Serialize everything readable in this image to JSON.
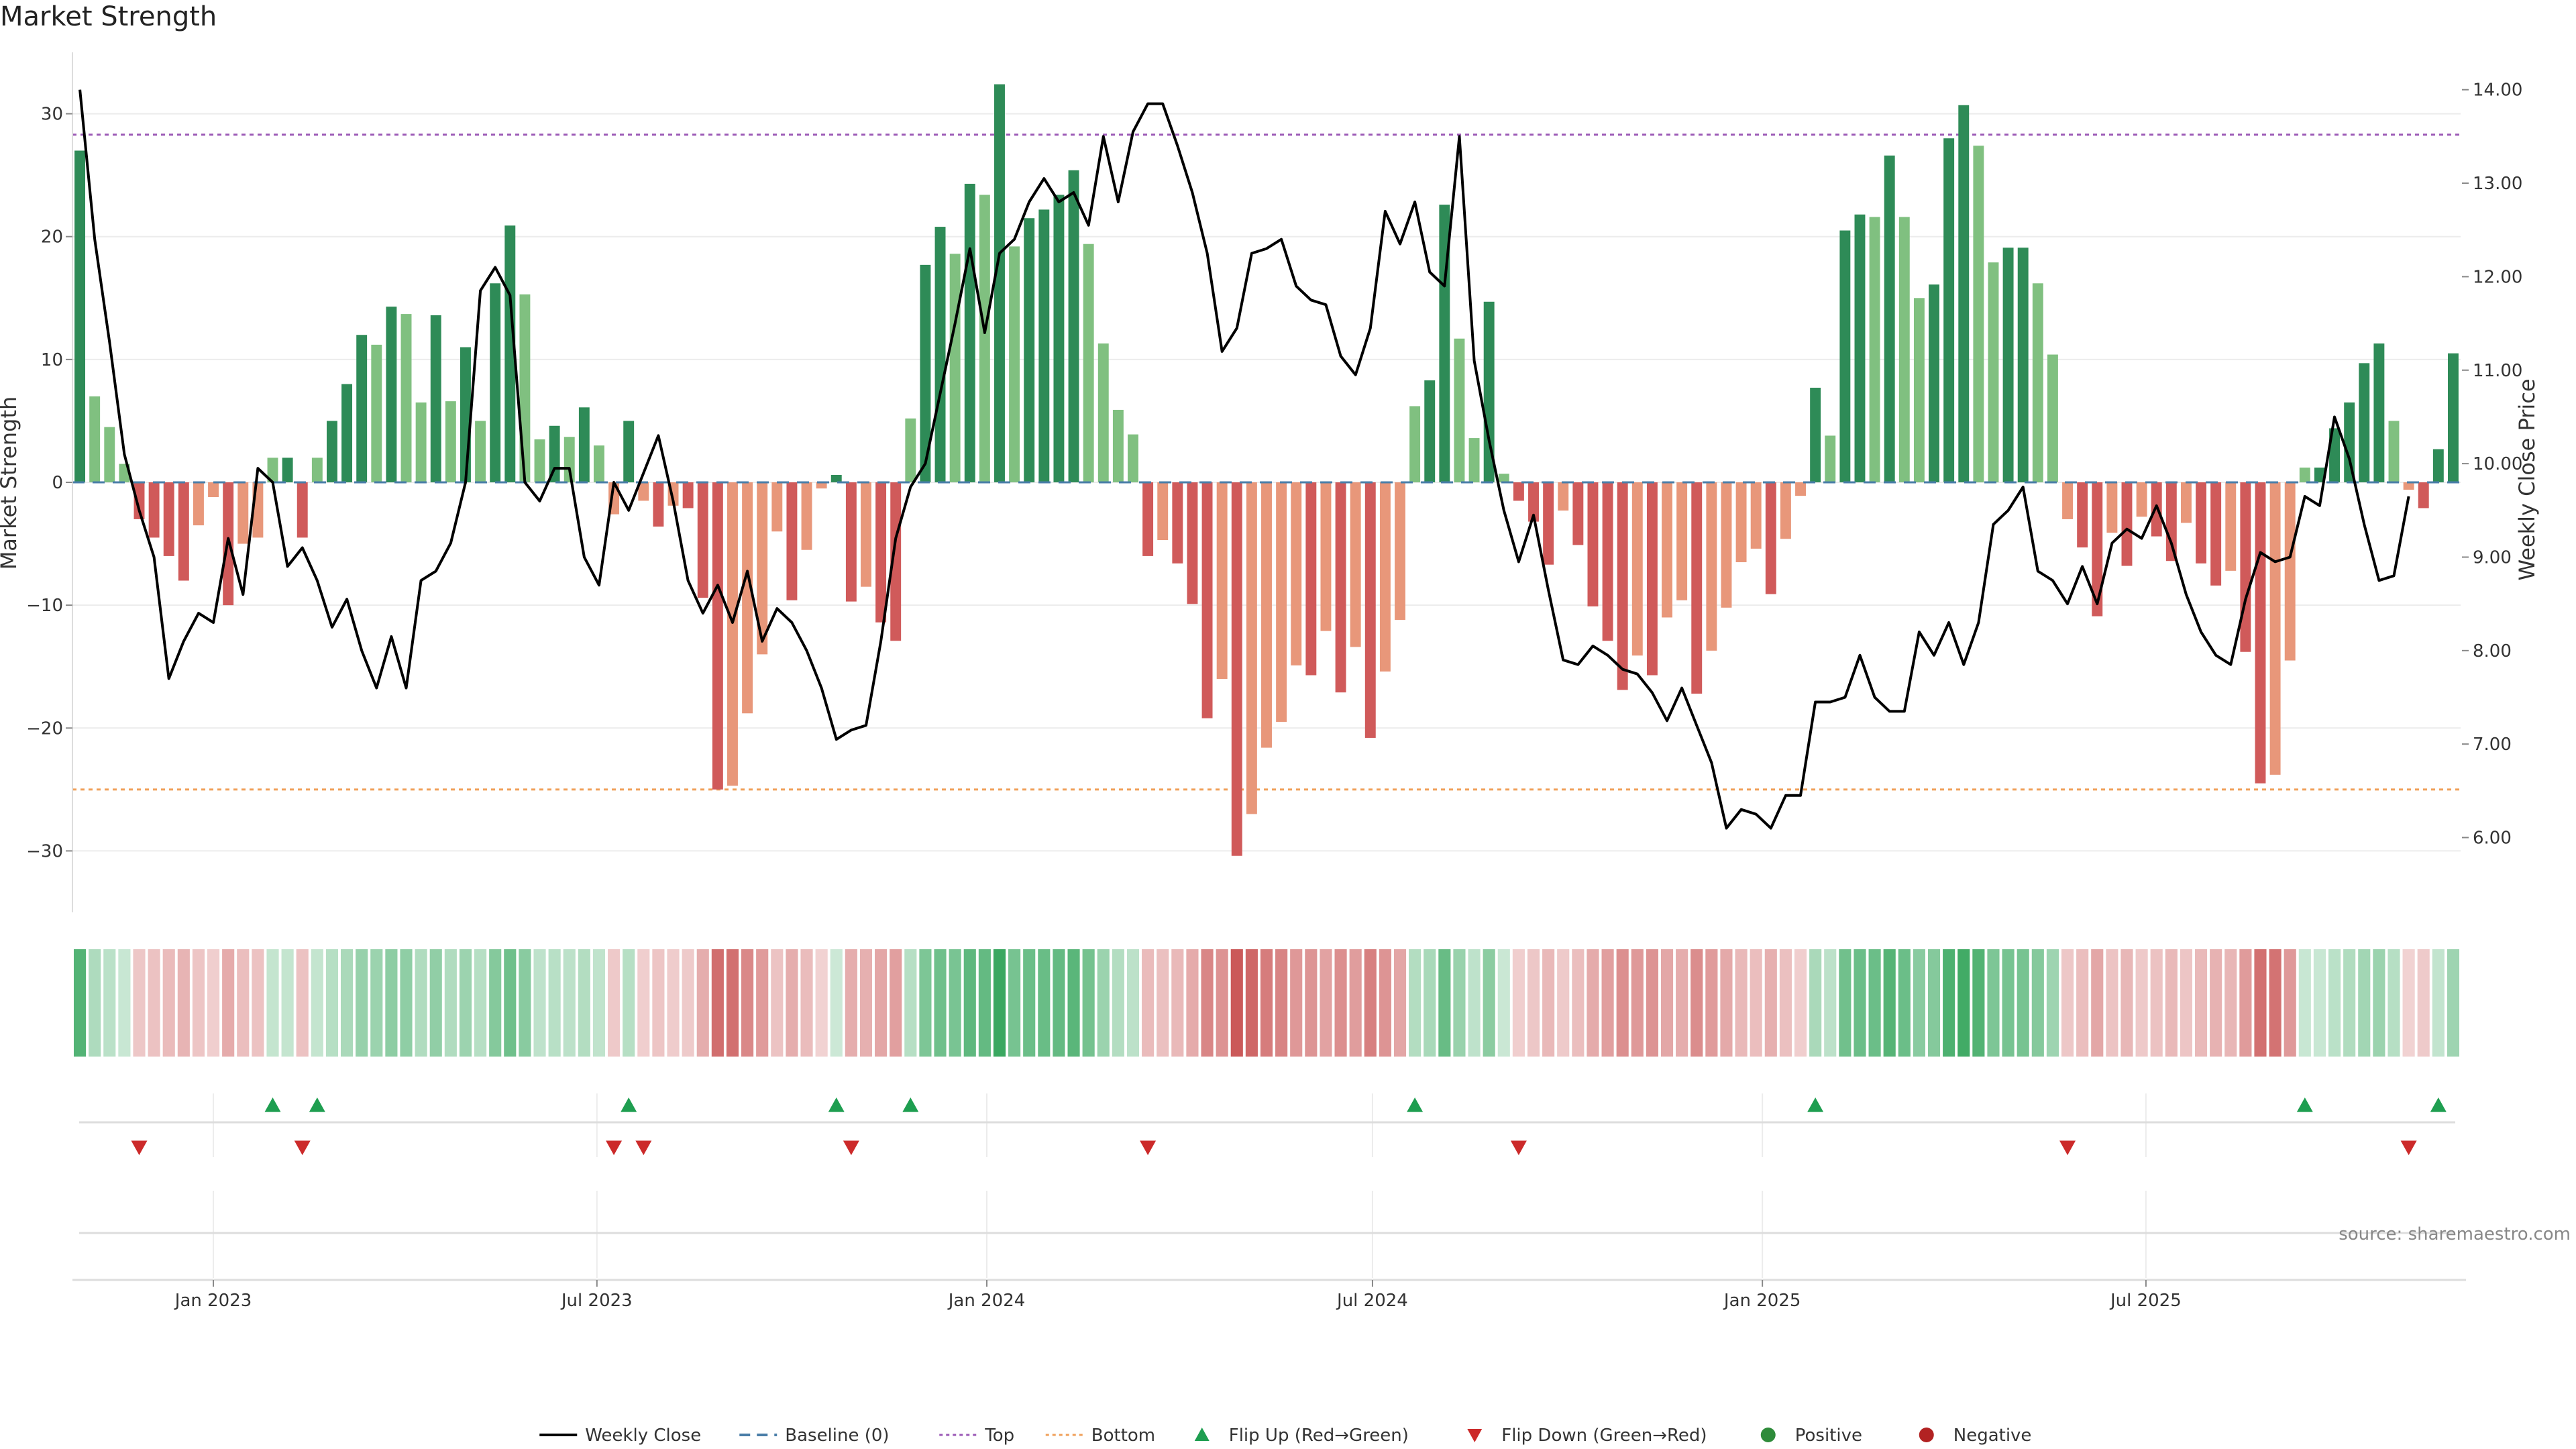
{
  "chart_data": {
    "type": "bar",
    "title": "Market Strength",
    "ylabel": "Market Strength",
    "ylabel_right": "Weekly Close Price",
    "ylim": [
      -35,
      35
    ],
    "ylim_right": [
      5.2,
      14.4
    ],
    "yticks": [
      30,
      20,
      10,
      0,
      -10,
      -20,
      -30
    ],
    "yticks_right": [
      "14.00",
      "13.00",
      "12.00",
      "11.00",
      "10.00",
      "9.00",
      "8.00",
      "7.00",
      "6.00"
    ],
    "start_date": "2022-10-30",
    "x_ticks": [
      {
        "label": "Jan 2023",
        "date": "2023-01-01"
      },
      {
        "label": "Jul 2023",
        "date": "2023-07-01"
      },
      {
        "label": "Jan 2024",
        "date": "2024-01-01"
      },
      {
        "label": "Jul 2024",
        "date": "2024-07-01"
      },
      {
        "label": "Jan 2025",
        "date": "2025-01-01"
      },
      {
        "label": "Jul 2025",
        "date": "2025-07-01"
      }
    ],
    "top_line": 28.3,
    "bottom_line": -25,
    "strength": [
      27,
      7,
      4.5,
      1.5,
      -3,
      -4.5,
      -6,
      -8,
      -3.5,
      -1.2,
      -10,
      -5,
      -4.5,
      2,
      2,
      -4.5,
      2,
      5,
      8,
      12,
      11.2,
      14.3,
      13.7,
      6.5,
      13.6,
      6.6,
      11,
      5,
      16.2,
      20.9,
      15.3,
      3.5,
      4.6,
      3.7,
      6.1,
      3,
      -2.6,
      5,
      -1.5,
      -3.6,
      -1.9,
      -2.1,
      -9.4,
      -25,
      -24.7,
      -18.8,
      -14,
      -4,
      -9.6,
      -5.5,
      -0.5,
      0.6,
      -9.7,
      -8.5,
      -11.4,
      -12.9,
      5.2,
      17.7,
      20.8,
      18.6,
      24.3,
      23.4,
      32.4,
      19.2,
      21.5,
      22.2,
      23.4,
      25.4,
      19.4,
      11.3,
      5.9,
      3.9,
      -6,
      -4.7,
      -6.6,
      -9.9,
      -19.2,
      -16,
      -30.4,
      -27,
      -21.6,
      -19.5,
      -14.9,
      -15.7,
      -12.1,
      -17.1,
      -13.4,
      -20.8,
      -15.4,
      -11.2,
      6.2,
      8.3,
      22.6,
      11.7,
      3.6,
      14.7,
      0.7,
      -1.5,
      -3.2,
      -6.7,
      -2.3,
      -5.1,
      -10.1,
      -12.9,
      -16.9,
      -14.1,
      -15.7,
      -11,
      -9.6,
      -17.2,
      -13.7,
      -10.2,
      -6.5,
      -5.4,
      -9.1,
      -4.6,
      -1.1,
      7.7,
      3.8,
      20.5,
      21.8,
      21.6,
      26.6,
      21.6,
      15,
      16.1,
      28,
      30.7,
      27.4,
      17.9,
      19.1,
      19.1,
      16.2,
      10.4,
      -3,
      -5.3,
      -10.9,
      -4.1,
      -6.8,
      -2.8,
      -4.4,
      -6.4,
      -3.3,
      -6.6,
      -8.4,
      -7.2,
      -13.8,
      -24.5,
      -23.8,
      -14.5,
      1.2,
      1.2,
      4.4,
      6.5,
      9.7,
      11.3,
      5,
      -0.6,
      -2.1,
      2.7,
      10.5
    ],
    "weekly_close": [
      14.0,
      12.4,
      11.3,
      10.1,
      9.5,
      9.0,
      7.7,
      8.1,
      8.4,
      8.3,
      9.2,
      8.6,
      9.95,
      9.8,
      8.9,
      9.1,
      8.75,
      8.25,
      8.55,
      8.0,
      7.6,
      8.15,
      7.6,
      8.75,
      8.85,
      9.15,
      9.8,
      11.85,
      12.1,
      11.8,
      9.8,
      9.6,
      9.95,
      9.95,
      9.0,
      8.7,
      9.8,
      9.5,
      9.9,
      10.3,
      9.6,
      8.75,
      8.4,
      8.7,
      8.3,
      8.85,
      8.1,
      8.45,
      8.3,
      8.0,
      7.6,
      7.05,
      7.15,
      7.2,
      8.1,
      9.2,
      9.75,
      10.0,
      10.75,
      11.5,
      12.3,
      11.4,
      12.25,
      12.4,
      12.8,
      13.05,
      12.8,
      12.9,
      12.55,
      13.5,
      12.8,
      13.55,
      13.85,
      13.85,
      13.4,
      12.9,
      12.25,
      11.2,
      11.45,
      12.25,
      12.3,
      12.4,
      11.9,
      11.75,
      11.7,
      11.15,
      10.95,
      11.45,
      12.7,
      12.35,
      12.8,
      12.05,
      11.9,
      13.5,
      11.1,
      10.25,
      9.5,
      8.95,
      9.45,
      8.65,
      7.9,
      7.85,
      8.05,
      7.95,
      7.8,
      7.75,
      7.55,
      7.25,
      7.6,
      7.2,
      6.8,
      6.1,
      6.3,
      6.25,
      6.1,
      6.45,
      6.45,
      7.45,
      7.45,
      7.5,
      7.95,
      7.5,
      7.35,
      7.35,
      8.2,
      7.95,
      8.3,
      7.85,
      8.3,
      9.35,
      9.5,
      9.75,
      8.85,
      8.75,
      8.5,
      8.9,
      8.5,
      9.15,
      9.3,
      9.2,
      9.55,
      9.15,
      8.6,
      8.2,
      7.95,
      7.85,
      8.55,
      9.05,
      8.95,
      9,
      9.65,
      9.55,
      10.5,
      10.05,
      9.35,
      8.75,
      8.8,
      9.65
    ],
    "legend": [
      {
        "name": "Weekly Close",
        "kind": "line-solid",
        "color": "#000000"
      },
      {
        "name": "Baseline (0)",
        "kind": "line-dash",
        "color": "#4a7ea8"
      },
      {
        "name": "Top",
        "kind": "line-dot",
        "color": "#9b59b6"
      },
      {
        "name": "Bottom",
        "kind": "line-dot",
        "color": "#f0a05a"
      },
      {
        "name": "Flip Up (Red→Green)",
        "kind": "tri-up",
        "color": "#1e9e50"
      },
      {
        "name": "Flip Down (Green→Red)",
        "kind": "tri-down",
        "color": "#cc2a2a"
      },
      {
        "name": "Positive",
        "kind": "dot",
        "color": "#2e8b3a"
      },
      {
        "name": "Negative",
        "kind": "dot",
        "color": "#b22222"
      }
    ],
    "legend_placement": "bottom",
    "grid": true
  },
  "colors": {
    "pos_strong": "#2e8b57",
    "pos_weak": "#80c080",
    "neg_strong": "#d05a5a",
    "neg_weak": "#e8977a",
    "price": "#000000",
    "top": "#9b59b6",
    "bottom": "#f0a05a",
    "baseline": "#4a7ea8",
    "flip_up": "#1e9e50",
    "flip_down": "#cc2a2a"
  },
  "source": "source: sharemaestro.com"
}
